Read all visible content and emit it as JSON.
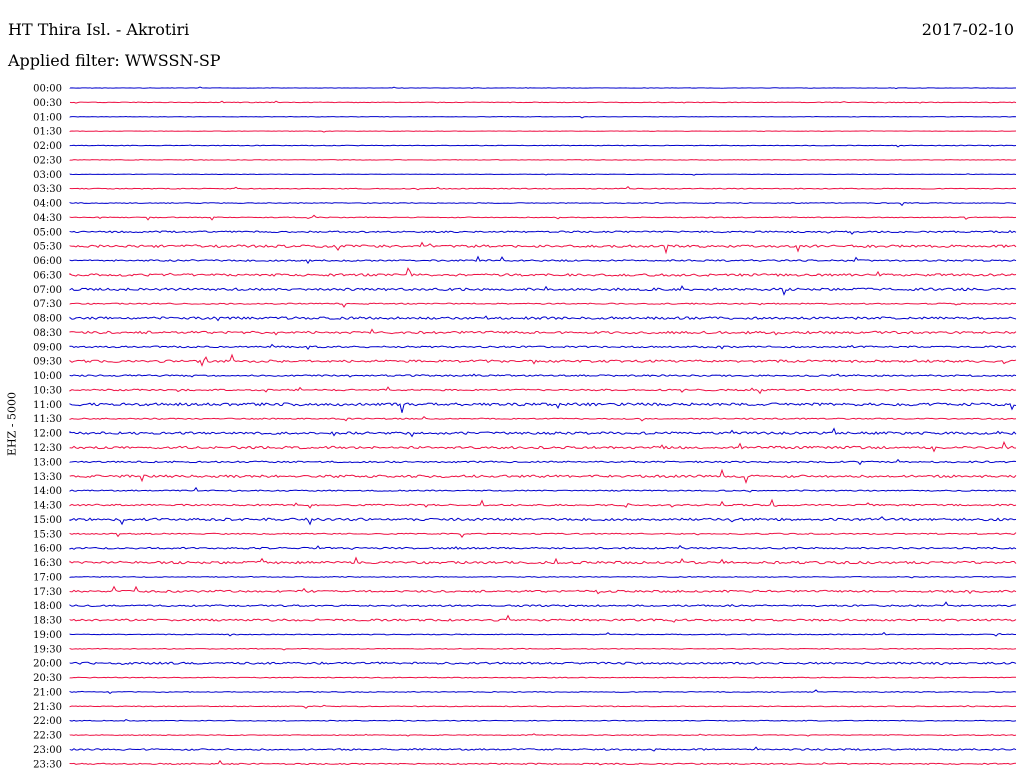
{
  "header": {
    "station": "HT Thira Isl. - Akrotiri",
    "date": "2017-02-10",
    "filter": "Applied filter: WWSSN-SP"
  },
  "channel_label": "EHZ - 5000",
  "colors": {
    "blue": "#0000cc",
    "red": "#ee1144"
  },
  "rows": [
    {
      "time": "00:00",
      "color": "blue",
      "activity": 0.05
    },
    {
      "time": "00:30",
      "color": "red",
      "activity": 0.08
    },
    {
      "time": "01:00",
      "color": "blue",
      "activity": 0.05
    },
    {
      "time": "01:30",
      "color": "red",
      "activity": 0.05
    },
    {
      "time": "02:00",
      "color": "blue",
      "activity": 0.08
    },
    {
      "time": "02:30",
      "color": "red",
      "activity": 0.07
    },
    {
      "time": "03:00",
      "color": "blue",
      "activity": 0.05
    },
    {
      "time": "03:30",
      "color": "red",
      "activity": 0.1
    },
    {
      "time": "04:00",
      "color": "blue",
      "activity": 0.1
    },
    {
      "time": "04:30",
      "color": "red",
      "activity": 0.1
    },
    {
      "time": "05:00",
      "color": "blue",
      "activity": 0.2
    },
    {
      "time": "05:30",
      "color": "red",
      "activity": 0.3
    },
    {
      "time": "06:00",
      "color": "blue",
      "activity": 0.2
    },
    {
      "time": "06:30",
      "color": "red",
      "activity": 0.3
    },
    {
      "time": "07:00",
      "color": "blue",
      "activity": 0.3
    },
    {
      "time": "07:30",
      "color": "red",
      "activity": 0.15
    },
    {
      "time": "08:00",
      "color": "blue",
      "activity": 0.3
    },
    {
      "time": "08:30",
      "color": "red",
      "activity": 0.3
    },
    {
      "time": "09:00",
      "color": "blue",
      "activity": 0.2
    },
    {
      "time": "09:30",
      "color": "red",
      "activity": 0.3
    },
    {
      "time": "10:00",
      "color": "blue",
      "activity": 0.2
    },
    {
      "time": "10:30",
      "color": "red",
      "activity": 0.2
    },
    {
      "time": "11:00",
      "color": "blue",
      "activity": 0.35
    },
    {
      "time": "11:30",
      "color": "red",
      "activity": 0.15
    },
    {
      "time": "12:00",
      "color": "blue",
      "activity": 0.3
    },
    {
      "time": "12:30",
      "color": "red",
      "activity": 0.3
    },
    {
      "time": "13:00",
      "color": "blue",
      "activity": 0.2
    },
    {
      "time": "13:30",
      "color": "red",
      "activity": 0.3
    },
    {
      "time": "14:00",
      "color": "blue",
      "activity": 0.15
    },
    {
      "time": "14:30",
      "color": "red",
      "activity": 0.2
    },
    {
      "time": "15:00",
      "color": "blue",
      "activity": 0.3
    },
    {
      "time": "15:30",
      "color": "red",
      "activity": 0.15
    },
    {
      "time": "16:00",
      "color": "blue",
      "activity": 0.2
    },
    {
      "time": "16:30",
      "color": "red",
      "activity": 0.3
    },
    {
      "time": "17:00",
      "color": "blue",
      "activity": 0.1
    },
    {
      "time": "17:30",
      "color": "red",
      "activity": 0.25
    },
    {
      "time": "18:00",
      "color": "blue",
      "activity": 0.2
    },
    {
      "time": "18:30",
      "color": "red",
      "activity": 0.25
    },
    {
      "time": "19:00",
      "color": "blue",
      "activity": 0.1
    },
    {
      "time": "19:30",
      "color": "red",
      "activity": 0.1
    },
    {
      "time": "20:00",
      "color": "blue",
      "activity": 0.25
    },
    {
      "time": "20:30",
      "color": "red",
      "activity": 0.1
    },
    {
      "time": "21:00",
      "color": "blue",
      "activity": 0.1
    },
    {
      "time": "21:30",
      "color": "red",
      "activity": 0.1
    },
    {
      "time": "22:00",
      "color": "blue",
      "activity": 0.1
    },
    {
      "time": "22:30",
      "color": "red",
      "activity": 0.1
    },
    {
      "time": "23:00",
      "color": "blue",
      "activity": 0.2
    },
    {
      "time": "23:30",
      "color": "red",
      "activity": 0.15
    }
  ]
}
